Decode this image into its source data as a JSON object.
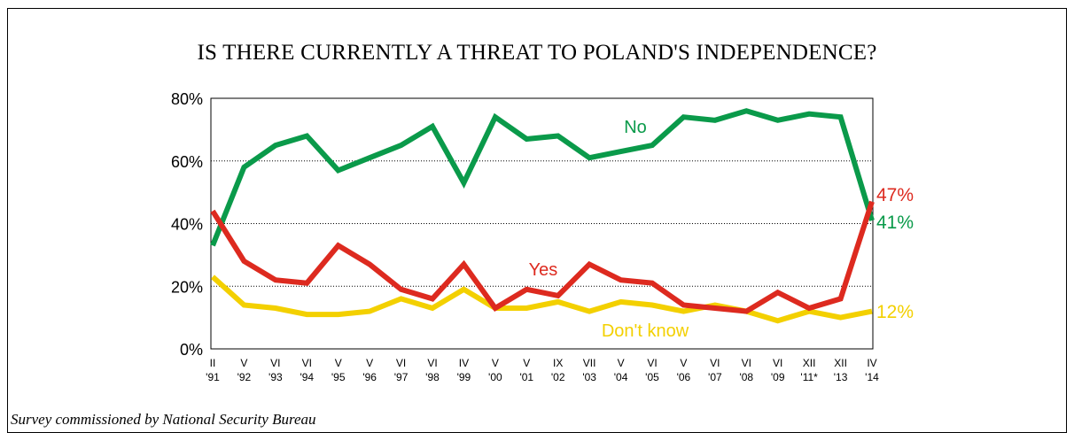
{
  "title": "IS THERE CURRENTLY A THREAT TO POLAND'S INDEPENDENCE?",
  "footnote": "Survey commissioned by National Security Bureau",
  "chart_data": {
    "type": "line",
    "title": "IS THERE CURRENTLY A THREAT TO POLAND'S INDEPENDENCE?",
    "xlabel": "",
    "ylabel": "",
    "ylim": [
      0,
      80
    ],
    "y_ticks": [
      "0%",
      "20%",
      "40%",
      "60%",
      "80%"
    ],
    "grid": "horizontal dotted",
    "x_months": [
      "II",
      "V",
      "VI",
      "VI",
      "V",
      "V",
      "VI",
      "VI",
      "IV",
      "V",
      "V",
      "IX",
      "VII",
      "V",
      "VI",
      "V",
      "VI",
      "VI",
      "VI",
      "XII",
      "XII",
      "IV"
    ],
    "x_years": [
      "'91",
      "'92",
      "'93",
      "'94",
      "'95",
      "'96",
      "'97",
      "'98",
      "'99",
      "'00",
      "'01",
      "'02",
      "'03",
      "'04",
      "'05",
      "'06",
      "'07",
      "'08",
      "'09",
      "'11*",
      "'13",
      "'14"
    ],
    "series": [
      {
        "name": "No",
        "color": "#0a9a4a",
        "values": [
          33,
          58,
          65,
          68,
          57,
          61,
          65,
          71,
          53,
          74,
          67,
          68,
          61,
          63,
          65,
          74,
          73,
          76,
          73,
          75,
          74,
          41
        ],
        "end_label": "41%"
      },
      {
        "name": "Yes",
        "color": "#dd2a1f",
        "values": [
          44,
          28,
          22,
          21,
          33,
          27,
          19,
          16,
          27,
          13,
          19,
          17,
          27,
          22,
          21,
          14,
          13,
          12,
          18,
          13,
          16,
          47
        ],
        "end_label": "47%"
      },
      {
        "name": "Don't know",
        "color": "#f3d000",
        "values": [
          23,
          14,
          13,
          11,
          11,
          12,
          16,
          13,
          19,
          13,
          13,
          15,
          12,
          15,
          14,
          12,
          14,
          12,
          9,
          12,
          10,
          12
        ],
        "end_label": "12%"
      }
    ]
  }
}
